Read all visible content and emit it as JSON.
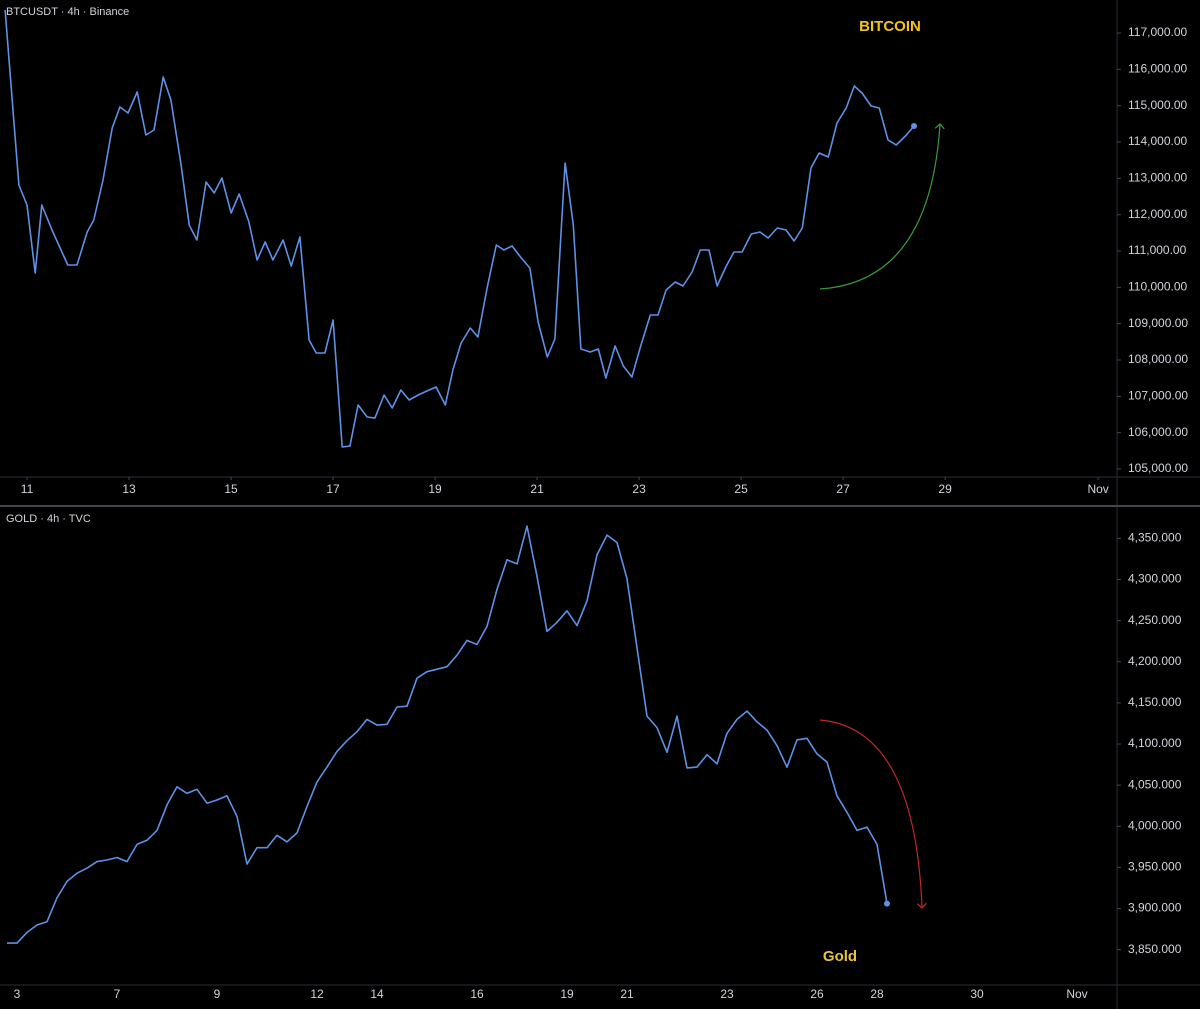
{
  "chart_data": [
    {
      "type": "line",
      "title": "BTCUSDT · 4h · Binance",
      "annotation": "BITCOIN",
      "annotation_color": "#f2c31b",
      "color": "#5e91e6",
      "x": [
        10.57,
        10.84,
        11.0,
        11.16,
        11.29,
        11.49,
        11.8,
        11.98,
        12.18,
        12.31,
        12.49,
        12.67,
        12.82,
        12.98,
        13.16,
        13.33,
        13.49,
        13.67,
        13.82,
        14.02,
        14.18,
        14.33,
        14.51,
        14.67,
        14.82,
        15.0,
        15.16,
        15.35,
        15.51,
        15.67,
        15.82,
        16.02,
        16.18,
        16.35,
        16.53,
        16.67,
        16.84,
        17.0,
        17.18,
        17.33,
        17.49,
        17.67,
        17.82,
        18.0,
        18.16,
        18.33,
        18.49,
        18.67,
        18.84,
        19.02,
        19.2,
        19.35,
        19.51,
        19.69,
        19.84,
        20.02,
        20.2,
        20.35,
        20.51,
        20.69,
        20.86,
        21.02,
        21.2,
        21.35,
        21.55,
        21.71,
        21.86,
        22.04,
        22.2,
        22.35,
        22.53,
        22.69,
        22.86,
        23.02,
        23.22,
        23.37,
        23.53,
        23.71,
        23.86,
        24.04,
        24.2,
        24.37,
        24.53,
        24.71,
        24.86,
        25.02,
        25.2,
        25.37,
        25.53,
        25.71,
        25.88,
        26.04,
        26.2,
        26.37,
        26.53,
        26.71,
        26.88,
        27.06,
        27.22,
        27.37,
        27.55,
        27.71,
        27.88,
        28.04,
        28.24,
        28.39
      ],
      "values": [
        117630,
        112816,
        112266,
        110394,
        112266,
        111578,
        110614,
        110614,
        111522,
        111853,
        112954,
        114385,
        114963,
        114798,
        115376,
        114193,
        114330,
        115789,
        115156,
        113367,
        111715,
        111302,
        112899,
        112596,
        113009,
        112046,
        112569,
        111798,
        110752,
        111248,
        110752,
        111302,
        110587,
        111385,
        108550,
        108192,
        108192,
        109100,
        105605,
        105630,
        106761,
        106431,
        106400,
        107036,
        106678,
        107173,
        106899,
        107036,
        107146,
        107256,
        106761,
        107724,
        108467,
        108880,
        108633,
        109981,
        111165,
        111027,
        111137,
        110807,
        110532,
        109045,
        108082,
        108577,
        113422,
        111715,
        108302,
        108220,
        108302,
        107504,
        108385,
        107834,
        107531,
        108330,
        109238,
        109238,
        109926,
        110147,
        110037,
        110422,
        111027,
        111027,
        110037,
        110587,
        110973,
        110973,
        111467,
        111522,
        111357,
        111633,
        111578,
        111275,
        111633,
        113285,
        113697,
        113587,
        114523,
        114936,
        115541,
        115349,
        114991,
        114936,
        114055,
        113917,
        114193,
        114440
      ],
      "xlim": [
        10.47,
        32.37
      ],
      "xticks": [
        11,
        13,
        15,
        17,
        19,
        21,
        23,
        25,
        27,
        29,
        {
          "value": 32,
          "label": "Nov"
        }
      ],
      "ylim": [
        104779,
        117908
      ],
      "yticks": [
        {
          "value": 105000,
          "label": "105,000.00"
        },
        {
          "value": 106000,
          "label": "106,000.00"
        },
        {
          "value": 107000,
          "label": "107,000.00"
        },
        {
          "value": 108000,
          "label": "108,000.00"
        },
        {
          "value": 109000,
          "label": "109,000.00"
        },
        {
          "value": 110000,
          "label": "110,000.00"
        },
        {
          "value": 111000,
          "label": "111,000.00"
        },
        {
          "value": 112000,
          "label": "112,000.00"
        },
        {
          "value": 113000,
          "label": "113,000.00"
        },
        {
          "value": 114000,
          "label": "114,000.00"
        },
        {
          "value": 115000,
          "label": "115,000.00"
        },
        {
          "value": 116000,
          "label": "116,000.00"
        },
        {
          "value": 117000,
          "label": "117,000.00"
        }
      ]
    },
    {
      "type": "line",
      "title": "GOLD · 4h · TVC",
      "annotation": "Gold",
      "annotation_color": "#e8c53a",
      "color": "#5e91e6",
      "categories": [
        null,
        "3",
        null,
        null,
        null,
        null,
        null,
        null,
        null,
        null,
        null,
        "7",
        null,
        null,
        null,
        null,
        null,
        null,
        null,
        null,
        null,
        "9",
        null,
        null,
        null,
        null,
        null,
        null,
        null,
        null,
        null,
        "12",
        null,
        null,
        null,
        null,
        null,
        "14",
        null,
        null,
        null,
        null,
        null,
        null,
        null,
        null,
        null,
        "16",
        null,
        null,
        null,
        null,
        null,
        null,
        null,
        null,
        "19",
        null,
        null,
        null,
        null,
        null,
        "21",
        null,
        null,
        null,
        null,
        null,
        null,
        null,
        null,
        null,
        "23",
        null,
        null,
        null,
        null,
        null,
        null,
        null,
        null,
        "26",
        null,
        null,
        null,
        null,
        null,
        "28",
        null,
        null,
        null,
        null,
        null,
        null,
        null,
        null,
        null,
        "30",
        null,
        null,
        null,
        null,
        null,
        null,
        null,
        null,
        null,
        "Nov"
      ],
      "values": [
        3858,
        3858,
        3871,
        3880,
        3884,
        3913,
        3933,
        3943,
        3949,
        3957,
        3959,
        3962,
        3957,
        3978,
        3983,
        3995,
        4026,
        4048,
        4040,
        4045,
        4028,
        4032,
        4037,
        4012,
        3954,
        3974,
        3974,
        3989,
        3981,
        3992,
        4024,
        4054,
        4072,
        4091,
        4104,
        4115,
        4130,
        4123,
        4124,
        4145,
        4146,
        4180,
        4188,
        4191,
        4194,
        4208,
        4226,
        4221,
        4243,
        4288,
        4324,
        4319,
        4365,
        4304,
        4237,
        4248,
        4262,
        4244,
        4274,
        4330,
        4354,
        4345,
        4301,
        4217,
        4134,
        4120,
        4090,
        4134,
        4071,
        4072,
        4087,
        4076,
        4113,
        4130,
        4140,
        4127,
        4117,
        4098,
        4072,
        4105,
        4107,
        4088,
        4078,
        4037,
        4017,
        3995,
        3999,
        3978,
        3906,
        null,
        null,
        null,
        null,
        null,
        null,
        null,
        null,
        null,
        null,
        null,
        null,
        null,
        null,
        null,
        null,
        null,
        null,
        null
      ],
      "ylim": [
        3807,
        4387
      ],
      "yticks": [
        {
          "value": 3850,
          "label": "3,850.000"
        },
        {
          "value": 3900,
          "label": "3,900.000"
        },
        {
          "value": 3950,
          "label": "3,950.000"
        },
        {
          "value": 4000,
          "label": "4,000.000"
        },
        {
          "value": 4050,
          "label": "4,050.000"
        },
        {
          "value": 4100,
          "label": "4,100.000"
        },
        {
          "value": 4150,
          "label": "4,150.000"
        },
        {
          "value": 4200,
          "label": "4,200.000"
        },
        {
          "value": 4250,
          "label": "4,250.000"
        },
        {
          "value": 4300,
          "label": "4,300.000"
        },
        {
          "value": 4350,
          "label": "4,350.000"
        }
      ]
    }
  ]
}
